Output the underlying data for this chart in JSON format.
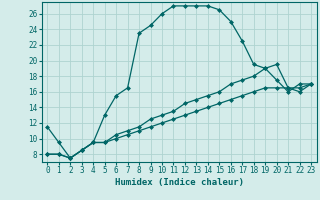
{
  "xlabel": "Humidex (Indice chaleur)",
  "ylabel": "",
  "bg_color": "#d4ecea",
  "grid_color": "#aed4d0",
  "line_color": "#006666",
  "x_ticks": [
    0,
    1,
    2,
    3,
    4,
    5,
    6,
    7,
    8,
    9,
    10,
    11,
    12,
    13,
    14,
    15,
    16,
    17,
    18,
    19,
    20,
    21,
    22,
    23
  ],
  "y_ticks": [
    8,
    10,
    12,
    14,
    16,
    18,
    20,
    22,
    24,
    26
  ],
  "xlim": [
    -0.5,
    23.5
  ],
  "ylim": [
    7.0,
    27.5
  ],
  "curve1_x": [
    0,
    1,
    2,
    3,
    4,
    5,
    6,
    7,
    8,
    9,
    10,
    11,
    12,
    13,
    14,
    15,
    16,
    17,
    18,
    19,
    20,
    21,
    22,
    23
  ],
  "curve1_y": [
    11.5,
    9.5,
    7.5,
    8.5,
    9.5,
    13.0,
    15.5,
    16.5,
    23.5,
    24.5,
    26.0,
    27.0,
    27.0,
    27.0,
    27.0,
    26.5,
    25.0,
    22.5,
    19.5,
    19.0,
    17.5,
    16.0,
    17.0,
    17.0
  ],
  "curve2_x": [
    0,
    1,
    2,
    3,
    4,
    5,
    6,
    7,
    8,
    9,
    10,
    11,
    12,
    13,
    14,
    15,
    16,
    17,
    18,
    19,
    20,
    21,
    22,
    23
  ],
  "curve2_y": [
    8.0,
    8.0,
    7.5,
    8.5,
    9.5,
    9.5,
    10.0,
    10.5,
    11.0,
    11.5,
    12.0,
    12.5,
    13.0,
    13.5,
    14.0,
    14.5,
    15.0,
    15.5,
    16.0,
    16.5,
    16.5,
    16.5,
    16.5,
    17.0
  ],
  "curve3_x": [
    0,
    1,
    2,
    3,
    4,
    5,
    6,
    7,
    8,
    9,
    10,
    11,
    12,
    13,
    14,
    15,
    16,
    17,
    18,
    19,
    20,
    21,
    22,
    23
  ],
  "curve3_y": [
    8.0,
    8.0,
    7.5,
    8.5,
    9.5,
    9.5,
    10.5,
    11.0,
    11.5,
    12.5,
    13.0,
    13.5,
    14.5,
    15.0,
    15.5,
    16.0,
    17.0,
    17.5,
    18.0,
    19.0,
    19.5,
    16.5,
    16.0,
    17.0
  ],
  "tick_fontsize": 5.5,
  "xlabel_fontsize": 6.5,
  "marker_size": 2.0,
  "linewidth": 0.9
}
